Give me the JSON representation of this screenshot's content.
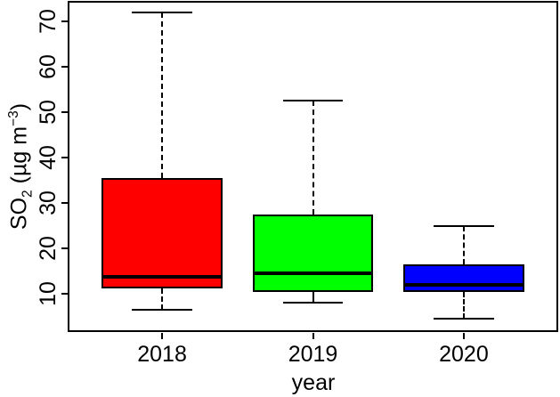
{
  "chart_data": {
    "type": "boxplot",
    "title": "",
    "xlabel": "year",
    "ylabel": "SO₂ (µg m⁻³)",
    "ylabel_parts": {
      "base": "SO",
      "sub": "2",
      "mid": " (µg m",
      "sup": "−3",
      "close": ")"
    },
    "categories": [
      "2018",
      "2019",
      "2020"
    ],
    "series": [
      {
        "name": "2018",
        "color": "#ff0000",
        "min": 6.5,
        "q1": 11.2,
        "median": 13.8,
        "q3": 35.5,
        "max": 72
      },
      {
        "name": "2019",
        "color": "#00ff00",
        "min": 8,
        "q1": 10.5,
        "median": 14.6,
        "q3": 27.5,
        "max": 52.5
      },
      {
        "name": "2020",
        "color": "#0000ff",
        "min": 4.5,
        "q1": 10.4,
        "median": 12,
        "q3": 16.4,
        "max": 25
      }
    ],
    "ylim": [
      1.6,
      74.3
    ],
    "yticks": [
      10,
      20,
      30,
      40,
      50,
      60,
      70
    ],
    "grid": false,
    "legend": false,
    "frame_color": "#000000",
    "background": "#ffffff"
  }
}
